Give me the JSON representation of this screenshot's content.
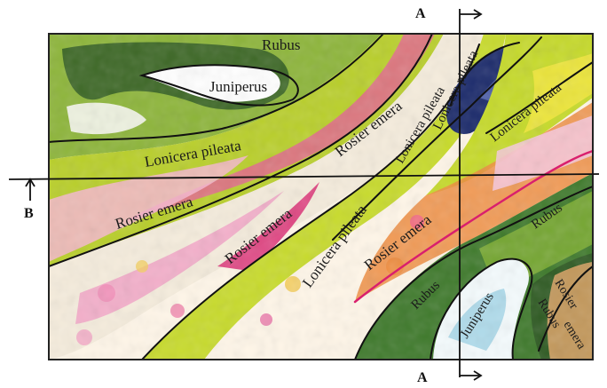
{
  "zone_labels": {
    "rubus_top": "Rubus",
    "juniperus_top": "Juniperus",
    "lonicera_left": "Lonicera pileata",
    "rosier_left": "Rosier emera",
    "rosier_center_left": "Rosier emera",
    "rosier_center_top": "Rosier emera",
    "lonicera_center": "Lonicera pileata",
    "lonicera_vertical": "Lonicera pileata",
    "lonicera_top_center": "Lonicera pileata",
    "lonicera_top_right": "Lonicera pileata",
    "lonicera_lower": "Lonicera pileata",
    "rosier_lower": "Rosier emera",
    "rubus_lower_center": "Rubus",
    "juniperus_bottom": "Juniperus",
    "rubus_right": "Rubus",
    "rubus_bottom_right": "Rubus",
    "rosier_bottom_right_1": "Rosier",
    "rosier_bottom_right_2": "emera"
  },
  "section_markers": {
    "top_a": "A",
    "bottom_a": "A",
    "left_b": "B"
  },
  "colors": {
    "frame": "#222222",
    "boundary": "#111111",
    "dark_green": "#2f5a23",
    "green": "#6f9d2e",
    "yellow_green": "#b9cf2a",
    "yellow": "#ece53a",
    "pink": "#e85a9c",
    "magenta": "#d91f6d",
    "orange": "#ef8b3d",
    "navy": "#1b2a6b",
    "light_blue": "#9ed3e6"
  }
}
